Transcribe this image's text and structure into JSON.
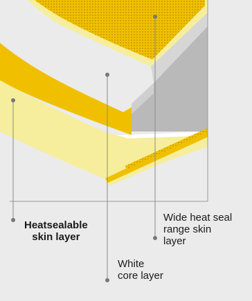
{
  "labels": {
    "heatsealable": {
      "line1": "Heatsealable",
      "line2": "skin layer"
    },
    "wide_heat_seal": {
      "line1": "Wide heat seal",
      "line2": "range skin",
      "line3": "layer"
    },
    "white_core": {
      "line1": "White",
      "line2": "core layer"
    }
  },
  "colors": {
    "background": "#ebebeb",
    "yellow": "#f0c000",
    "pale_yellow": "#f6ee9c",
    "white_core": "#ffffff",
    "gray_side": "#b9b9b9",
    "leader_line": "#8a8a8a",
    "dot": "#777777"
  }
}
